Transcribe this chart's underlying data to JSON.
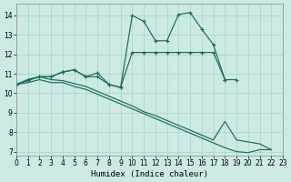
{
  "xlabel": "Humidex (Indice chaleur)",
  "bg_color": "#cce9e5",
  "grid_color": "#a8d4ce",
  "line_color": "#1a6b5a",
  "xlim": [
    0,
    23
  ],
  "ylim": [
    6.8,
    14.6
  ],
  "yticks": [
    7,
    8,
    9,
    10,
    11,
    12,
    13,
    14
  ],
  "xticks": [
    0,
    1,
    2,
    3,
    4,
    5,
    6,
    7,
    8,
    9,
    10,
    11,
    12,
    13,
    14,
    15,
    16,
    17,
    18,
    19,
    20,
    21,
    22,
    23
  ],
  "c1_x": [
    0,
    1,
    2,
    3,
    4,
    5,
    6,
    7,
    8,
    9,
    10,
    11,
    12,
    13,
    14,
    15,
    16,
    17,
    18
  ],
  "c1_y": [
    10.45,
    10.7,
    10.85,
    10.85,
    11.1,
    11.2,
    10.85,
    10.85,
    10.45,
    10.3,
    14.0,
    13.7,
    12.7,
    12.7,
    14.05,
    14.15,
    13.3,
    12.5,
    10.7
  ],
  "c2_x": [
    0,
    1,
    2,
    3,
    4,
    5,
    6,
    7,
    8,
    9,
    10,
    11,
    12,
    13,
    14,
    15,
    16,
    17,
    18,
    19
  ],
  "c2_y": [
    10.45,
    10.7,
    10.85,
    10.85,
    11.1,
    11.2,
    10.85,
    11.05,
    10.45,
    10.3,
    12.1,
    12.1,
    12.1,
    12.1,
    12.1,
    12.1,
    12.1,
    12.1,
    10.7,
    10.7
  ],
  "c3_x": [
    0,
    1,
    2,
    3,
    4,
    5,
    6,
    7,
    8,
    9,
    10,
    11,
    12,
    13,
    14,
    15,
    16,
    17,
    18,
    19,
    20,
    21,
    22
  ],
  "c3_y": [
    10.45,
    10.65,
    10.85,
    10.7,
    10.65,
    10.5,
    10.35,
    10.1,
    9.85,
    9.6,
    9.35,
    9.05,
    8.85,
    8.6,
    8.35,
    8.1,
    7.85,
    7.6,
    8.55,
    7.6,
    7.5,
    7.4,
    7.1
  ],
  "c4_x": [
    0,
    1,
    2,
    3,
    4,
    5,
    6,
    7,
    8,
    9,
    10,
    11,
    12,
    13,
    14,
    15,
    16,
    17,
    18,
    19,
    20,
    21,
    22
  ],
  "c4_y": [
    10.45,
    10.55,
    10.7,
    10.55,
    10.55,
    10.35,
    10.2,
    9.95,
    9.7,
    9.45,
    9.2,
    8.95,
    8.7,
    8.45,
    8.2,
    7.95,
    7.7,
    7.45,
    7.2,
    7.0,
    6.95,
    7.1,
    7.1
  ]
}
